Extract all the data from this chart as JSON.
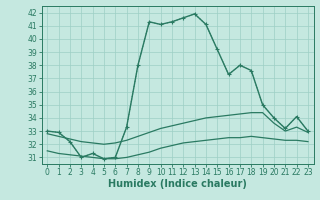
{
  "x": [
    0,
    1,
    2,
    3,
    4,
    5,
    6,
    7,
    8,
    9,
    10,
    11,
    12,
    13,
    14,
    15,
    16,
    17,
    18,
    19,
    20,
    21,
    22,
    23
  ],
  "curve_main": [
    33.0,
    32.9,
    32.2,
    31.0,
    31.3,
    30.9,
    31.0,
    33.3,
    38.0,
    41.3,
    41.1,
    41.3,
    41.6,
    41.9,
    41.1,
    39.2,
    37.3,
    38.0,
    37.6,
    35.0,
    34.0,
    33.2,
    34.1,
    33.0
  ],
  "curve_dotted": [
    33.0,
    32.9,
    32.2,
    31.0,
    31.3,
    30.9,
    31.0,
    33.3,
    38.0,
    41.3,
    41.1,
    41.3,
    41.6,
    41.9,
    41.1,
    39.2,
    37.3,
    38.0,
    37.6,
    35.0,
    34.0,
    33.2,
    34.1,
    33.0
  ],
  "curve_mid": [
    32.8,
    32.6,
    32.4,
    32.2,
    32.1,
    32.0,
    32.1,
    32.3,
    32.6,
    32.9,
    33.2,
    33.4,
    33.6,
    33.8,
    34.0,
    34.1,
    34.2,
    34.3,
    34.4,
    34.4,
    33.6,
    33.0,
    33.3,
    32.9
  ],
  "curve_low": [
    31.5,
    31.3,
    31.2,
    31.1,
    31.0,
    30.9,
    30.9,
    31.0,
    31.2,
    31.4,
    31.7,
    31.9,
    32.1,
    32.2,
    32.3,
    32.4,
    32.5,
    32.5,
    32.6,
    32.5,
    32.4,
    32.3,
    32.3,
    32.2
  ],
  "color": "#2a7a62",
  "bg_color": "#c5e8e0",
  "grid_color": "#9ecfc5",
  "xlabel": "Humidex (Indice chaleur)",
  "ylim": [
    30.5,
    42.5
  ],
  "yticks": [
    31,
    32,
    33,
    34,
    35,
    36,
    37,
    38,
    39,
    40,
    41,
    42
  ],
  "xticks": [
    0,
    1,
    2,
    3,
    4,
    5,
    6,
    7,
    8,
    9,
    10,
    11,
    12,
    13,
    14,
    15,
    16,
    17,
    18,
    19,
    20,
    21,
    22,
    23
  ],
  "tick_fontsize": 5.5,
  "label_fontsize": 7.0
}
